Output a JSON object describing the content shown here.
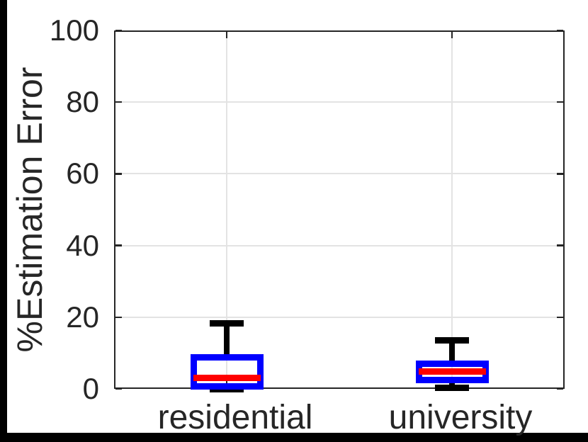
{
  "figure": {
    "background": "#ffffff",
    "frame_color": "#000000",
    "axis_color": "#262626",
    "grid_color": "#e3e3e3"
  },
  "chart_data": {
    "type": "boxplot",
    "title": "",
    "ylabel": "%Estimation Error",
    "xlabel": "",
    "categories": [
      "residential",
      "university"
    ],
    "ylim": [
      0,
      100
    ],
    "yticks": [
      0,
      20,
      40,
      60,
      80,
      100
    ],
    "ytick_labels": [
      "0",
      "20",
      "40",
      "60",
      "80",
      "100"
    ],
    "grid": true,
    "legend_position": "none",
    "series": [
      {
        "category": "residential",
        "whisker_low": 0.0,
        "q1": 0.7,
        "median": 3.0,
        "q3": 8.8,
        "whisker_high": 18.2
      },
      {
        "category": "university",
        "whisker_low": 0.3,
        "q1": 2.4,
        "median": 4.9,
        "q3": 7.1,
        "whisker_high": 13.5
      }
    ],
    "style": {
      "box_color": "#0000ff",
      "median_color": "#ff0000",
      "whisker_color": "#000000"
    }
  }
}
